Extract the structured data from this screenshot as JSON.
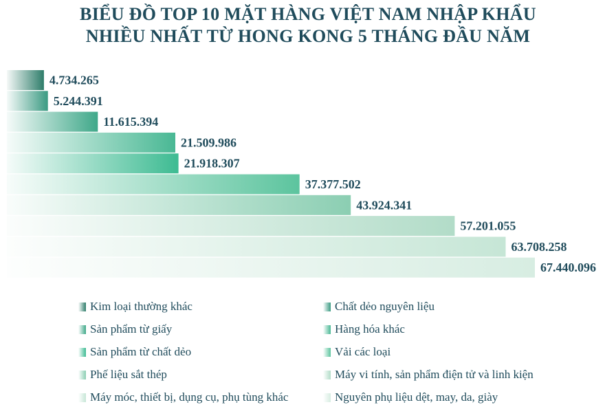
{
  "title_line1": "BIỂU ĐỒ TOP 10 MẶT HÀNG VIỆT NAM NHẬP KHẨU",
  "title_line2": "NHIỀU NHẤT TỪ HONG KONG 5 THÁNG ĐẦU NĂM",
  "chart_data": {
    "type": "bar",
    "orientation": "horizontal",
    "title": "BIỂU ĐỒ TOP 10 MẶT HÀNG VIỆT NAM NHẬP KHẨU NHIỀU NHẤT TỪ HONG KONG 5 THÁNG ĐẦU NĂM",
    "xlim": [
      0,
      67440096
    ],
    "grid": false,
    "legend_position": "bottom",
    "categories": [
      "Kim loại thường khác",
      "Chất dẻo nguyên liệu",
      "Sản phẩm từ giấy",
      "Hàng hóa khác",
      "Sản phẩm từ chất dẻo",
      "Vải các loại",
      "Phế liệu sắt thép",
      "Máy vi tính, sản phẩm điện tử và linh kiện",
      "Máy móc, thiết bị, dụng cụ, phụ tùng khác",
      "Nguyên phụ liệu dệt, may, da, giày"
    ],
    "values": [
      4734265,
      5244391,
      11615394,
      21509986,
      21918307,
      37377502,
      43924341,
      57201055,
      63708258,
      67440096
    ],
    "value_labels": [
      "4.734.265",
      "5.244.391",
      "11.615.394",
      "21.509.986",
      "21.918.307",
      "37.377.502",
      "43.924.341",
      "57.201.055",
      "63.708.258",
      "67.440.096"
    ],
    "colors": [
      "#2e7d6a",
      "#3a9a82",
      "#3fa889",
      "#49b894",
      "#3dbb92",
      "#5cc49e",
      "#8bceb2",
      "#b2dcc8",
      "#c6e6d6",
      "#d7ede2"
    ]
  }
}
